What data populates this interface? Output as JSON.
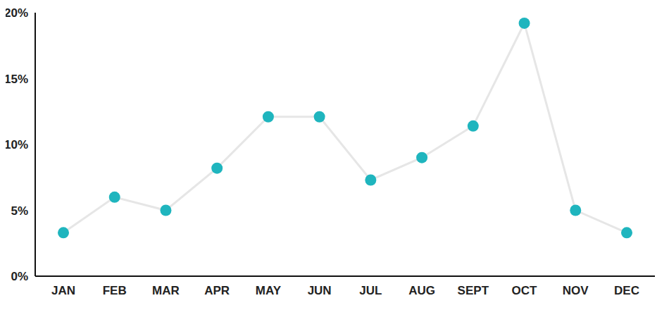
{
  "chart_data": {
    "type": "line",
    "categories": [
      "JAN",
      "FEB",
      "MAR",
      "APR",
      "MAY",
      "JUN",
      "JUL",
      "AUG",
      "SEPT",
      "OCT",
      "NOV",
      "DEC"
    ],
    "values": [
      3.3,
      6.0,
      5.0,
      8.2,
      12.1,
      12.1,
      7.3,
      9.0,
      11.4,
      19.2,
      5.0,
      3.3
    ],
    "color": "#1fb5be",
    "marker": "circle",
    "ylim": [
      0,
      20
    ],
    "yticks": [
      {
        "value": 0,
        "label": "0%"
      },
      {
        "value": 5,
        "label": "5%"
      },
      {
        "value": 10,
        "label": "10%"
      },
      {
        "value": 15,
        "label": "15%"
      },
      {
        "value": 20,
        "label": "20%"
      }
    ],
    "grid": false
  }
}
